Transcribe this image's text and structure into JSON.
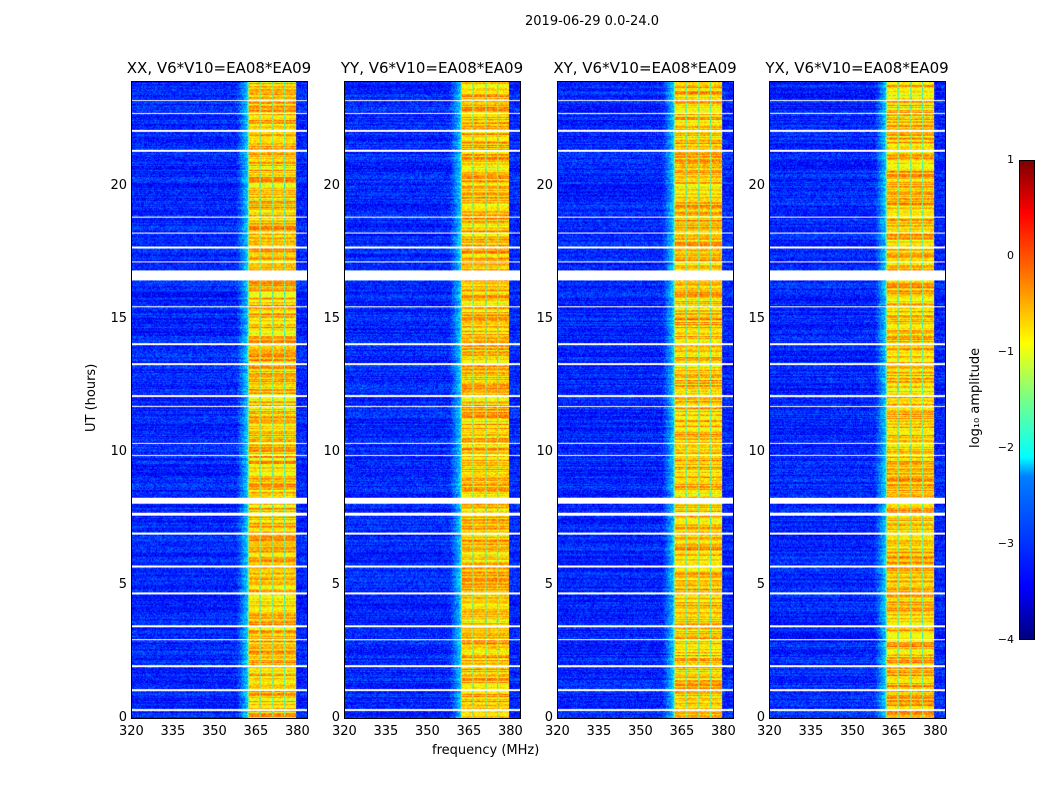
{
  "chart_data": {
    "type": "heatmap",
    "title": "2019-06-29 0.0-24.0",
    "xlabel": "frequency (MHz)",
    "ylabel": "UT (hours)",
    "xlim": [
      320,
      384
    ],
    "ylim": [
      0,
      24
    ],
    "xticks": [
      "320",
      "335",
      "350",
      "365",
      "380"
    ],
    "xtick_values": [
      320,
      335,
      350,
      365,
      380
    ],
    "yticks": [
      "0",
      "5",
      "10",
      "15",
      "20"
    ],
    "ytick_values": [
      0,
      5,
      10,
      15,
      20
    ],
    "panels": [
      {
        "title": "XX, V6*V10=EA08*EA09"
      },
      {
        "title": "YY, V6*V10=EA08*EA09"
      },
      {
        "title": "XY, V6*V10=EA08*EA09"
      },
      {
        "title": "YX, V6*V10=EA08*EA09"
      }
    ],
    "high_band_mhz": [
      362,
      380
    ],
    "background_log_amp": -3.2,
    "band_log_amp": -0.6,
    "flagged_hours": [
      [
        0.28,
        0.36
      ],
      [
        1.05,
        1.12
      ],
      [
        1.95,
        2.02
      ],
      [
        2.95,
        3.0
      ],
      [
        3.45,
        3.5
      ],
      [
        4.7,
        4.75
      ],
      [
        5.7,
        5.78
      ],
      [
        6.95,
        7.0
      ],
      [
        7.65,
        7.75
      ],
      [
        8.1,
        8.35
      ],
      [
        9.9,
        9.95
      ],
      [
        10.35,
        10.4
      ],
      [
        11.75,
        11.8
      ],
      [
        12.15,
        12.2
      ],
      [
        13.35,
        13.4
      ],
      [
        14.1,
        14.15
      ],
      [
        15.5,
        15.55
      ],
      [
        16.55,
        16.9
      ],
      [
        17.2,
        17.25
      ],
      [
        17.75,
        17.8
      ],
      [
        18.3,
        18.35
      ],
      [
        18.9,
        18.95
      ],
      [
        21.4,
        21.45
      ],
      [
        22.15,
        22.2
      ],
      [
        22.8,
        22.85
      ],
      [
        23.3,
        23.35
      ]
    ],
    "colorbar": {
      "label": "log₁₀ amplitude",
      "ticks": [
        "1",
        "0",
        "−1",
        "−2",
        "−3",
        "−4"
      ],
      "range": [
        -4,
        1
      ]
    }
  }
}
